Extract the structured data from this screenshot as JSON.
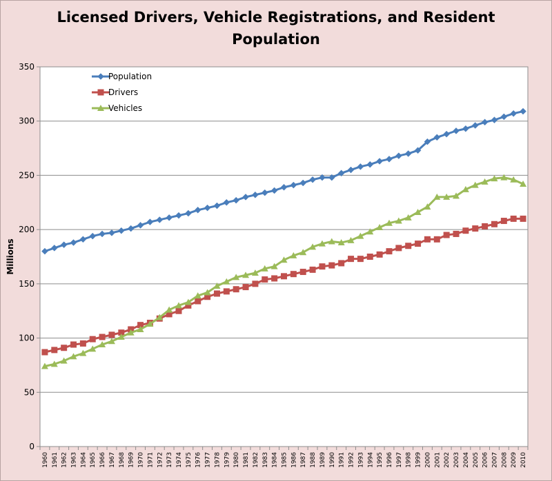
{
  "chart_data": {
    "type": "line",
    "title_lines": [
      "Licensed Drivers, Vehicle Registrations, and Resident",
      "Population"
    ],
    "ylabel": "Millions",
    "xlabel": "",
    "ylim": [
      0,
      350
    ],
    "y_ticks": [
      0,
      50,
      100,
      150,
      200,
      250,
      300,
      350
    ],
    "grid": "horizontal",
    "legend_position": "top-left",
    "x": [
      "1960",
      "1961",
      "1962",
      "1963",
      "1964",
      "1965",
      "1966",
      "1967",
      "1968",
      "1969",
      "1970",
      "1971",
      "1972",
      "1973",
      "1974",
      "1975",
      "1976",
      "1977",
      "1978",
      "1979",
      "1980",
      "1981",
      "1982",
      "1983",
      "1984",
      "1985",
      "1986",
      "1987",
      "1988",
      "1989",
      "1990",
      "1991",
      "1992",
      "1993",
      "1994",
      "1995",
      "1996",
      "1997",
      "1998",
      "1999",
      "2000",
      "2001",
      "2002",
      "2003",
      "2004",
      "2005",
      "2006",
      "2007",
      "2008",
      "2009",
      "2010"
    ],
    "series": [
      {
        "name": "Population",
        "color": "#4a7ebb",
        "marker": "diamond",
        "values": [
          180,
          183,
          186,
          188,
          191,
          194,
          196,
          197,
          199,
          201,
          204,
          207,
          209,
          211,
          213,
          215,
          218,
          220,
          222,
          225,
          227,
          230,
          232,
          234,
          236,
          239,
          241,
          243,
          246,
          248,
          248,
          252,
          255,
          258,
          260,
          263,
          265,
          268,
          270,
          273,
          281,
          285,
          288,
          291,
          293,
          296,
          299,
          301,
          304,
          307,
          309
        ]
      },
      {
        "name": "Drivers",
        "color": "#c0504d",
        "marker": "square",
        "values": [
          87,
          89,
          91,
          94,
          95,
          99,
          101,
          103,
          105,
          108,
          112,
          114,
          118,
          122,
          125,
          130,
          134,
          138,
          141,
          143,
          145,
          147,
          150,
          154,
          155,
          157,
          159,
          161,
          163,
          166,
          167,
          169,
          173,
          173,
          175,
          177,
          180,
          183,
          185,
          187,
          191,
          191,
          195,
          196,
          199,
          201,
          203,
          205,
          208,
          210,
          210
        ]
      },
      {
        "name": "Vehicles",
        "color": "#9bbb59",
        "marker": "triangle",
        "values": [
          74,
          76,
          79,
          83,
          86,
          90,
          94,
          97,
          101,
          105,
          108,
          113,
          119,
          126,
          130,
          133,
          139,
          142,
          148,
          152,
          156,
          158,
          160,
          164,
          166,
          172,
          176,
          179,
          184,
          187,
          189,
          188,
          190,
          194,
          198,
          202,
          206,
          208,
          211,
          216,
          221,
          230,
          230,
          231,
          237,
          241,
          244,
          247,
          248,
          246,
          242
        ]
      }
    ]
  }
}
